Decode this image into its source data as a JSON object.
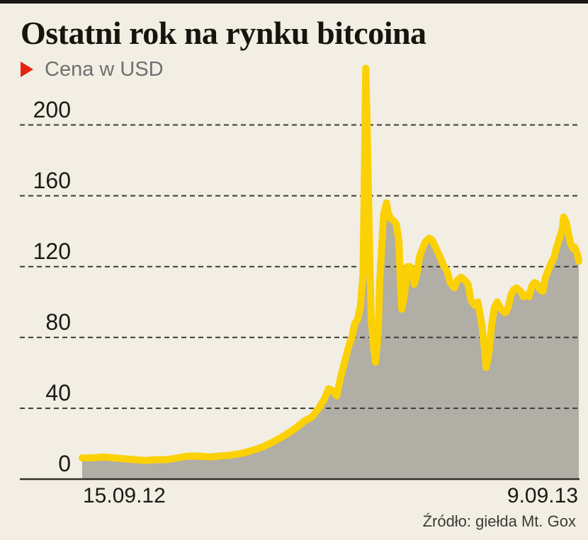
{
  "header": {
    "title": "Ostatni rok na rynku bitcoina"
  },
  "legend": {
    "label": "Cena w USD",
    "marker_color": "#e42313"
  },
  "source": {
    "text": "Źródło: giełda Mt. Gox"
  },
  "colors": {
    "background": "#f2eee3",
    "top_bar": "#1a1916",
    "line": "#fbd106",
    "area_fill": "#b1aea6",
    "gridline": "#3d3b37",
    "axis": "#33312d"
  },
  "chart_data": {
    "type": "area",
    "title": "Ostatni rok na rynku bitcoina",
    "series_name": "Cena w USD",
    "unit": "USD",
    "xlabel": "",
    "ylabel": "Cena w USD",
    "x_start_label": "15.09.12",
    "x_end_label": "9.09.13",
    "x_unit": "days_since_15.09.12",
    "x_range_days": 359,
    "ylim": [
      0,
      240
    ],
    "yticks": [
      0,
      40,
      80,
      120,
      160,
      200
    ],
    "grid": "dashed-horizontal",
    "legend_position": "top-left",
    "peak_value_usd": 232,
    "peak_date": "10.04.13",
    "points": [
      [
        0,
        12
      ],
      [
        7,
        12
      ],
      [
        15,
        12.5
      ],
      [
        23,
        12
      ],
      [
        30,
        11.5
      ],
      [
        38,
        11
      ],
      [
        46,
        10.5
      ],
      [
        53,
        11
      ],
      [
        61,
        11
      ],
      [
        69,
        12
      ],
      [
        76,
        13
      ],
      [
        84,
        13
      ],
      [
        92,
        12.5
      ],
      [
        99,
        13
      ],
      [
        107,
        13.5
      ],
      [
        115,
        14.5
      ],
      [
        122,
        16
      ],
      [
        130,
        18
      ],
      [
        138,
        21
      ],
      [
        145,
        24
      ],
      [
        153,
        28
      ],
      [
        161,
        33
      ],
      [
        166,
        35
      ],
      [
        171,
        40
      ],
      [
        175,
        45
      ],
      [
        178,
        51
      ],
      [
        181,
        50
      ],
      [
        184,
        47
      ],
      [
        187,
        58
      ],
      [
        190,
        67
      ],
      [
        193,
        76
      ],
      [
        195,
        80
      ],
      [
        197,
        88
      ],
      [
        199,
        90
      ],
      [
        201,
        97
      ],
      [
        203,
        115
      ],
      [
        204,
        170
      ],
      [
        205,
        232
      ],
      [
        206,
        200
      ],
      [
        207,
        160
      ],
      [
        208,
        120
      ],
      [
        209,
        90
      ],
      [
        211,
        72
      ],
      [
        212,
        66
      ],
      [
        214,
        82
      ],
      [
        215,
        110
      ],
      [
        217,
        138
      ],
      [
        218,
        150
      ],
      [
        220,
        156
      ],
      [
        221,
        151
      ],
      [
        223,
        147
      ],
      [
        225,
        146
      ],
      [
        227,
        144
      ],
      [
        229,
        134
      ],
      [
        230,
        112
      ],
      [
        231,
        96
      ],
      [
        233,
        104
      ],
      [
        235,
        120
      ],
      [
        237,
        120
      ],
      [
        239,
        117
      ],
      [
        240,
        110
      ],
      [
        242,
        116
      ],
      [
        244,
        126
      ],
      [
        246,
        130
      ],
      [
        248,
        134
      ],
      [
        251,
        136
      ],
      [
        253,
        135
      ],
      [
        256,
        130
      ],
      [
        259,
        125
      ],
      [
        261,
        121
      ],
      [
        264,
        117
      ],
      [
        266,
        111
      ],
      [
        269,
        108
      ],
      [
        271,
        112
      ],
      [
        274,
        114
      ],
      [
        277,
        112
      ],
      [
        279,
        110
      ],
      [
        281,
        101
      ],
      [
        284,
        98
      ],
      [
        286,
        100
      ],
      [
        289,
        87
      ],
      [
        291,
        72
      ],
      [
        292,
        63
      ],
      [
        294,
        71
      ],
      [
        296,
        87
      ],
      [
        298,
        97
      ],
      [
        300,
        100
      ],
      [
        302,
        97
      ],
      [
        304,
        95
      ],
      [
        306,
        94
      ],
      [
        308,
        97
      ],
      [
        310,
        104
      ],
      [
        312,
        107
      ],
      [
        314,
        108
      ],
      [
        317,
        106
      ],
      [
        319,
        103
      ],
      [
        321,
        104
      ],
      [
        323,
        103
      ],
      [
        325,
        109
      ],
      [
        327,
        111
      ],
      [
        329,
        110
      ],
      [
        331,
        107
      ],
      [
        333,
        106
      ],
      [
        335,
        114
      ],
      [
        337,
        118
      ],
      [
        339,
        122
      ],
      [
        341,
        125
      ],
      [
        343,
        131
      ],
      [
        345,
        136
      ],
      [
        347,
        141
      ],
      [
        348,
        148
      ],
      [
        350,
        145
      ],
      [
        352,
        137
      ],
      [
        353,
        133
      ],
      [
        355,
        130
      ],
      [
        356,
        131
      ],
      [
        358,
        127
      ],
      [
        359,
        123
      ]
    ]
  }
}
